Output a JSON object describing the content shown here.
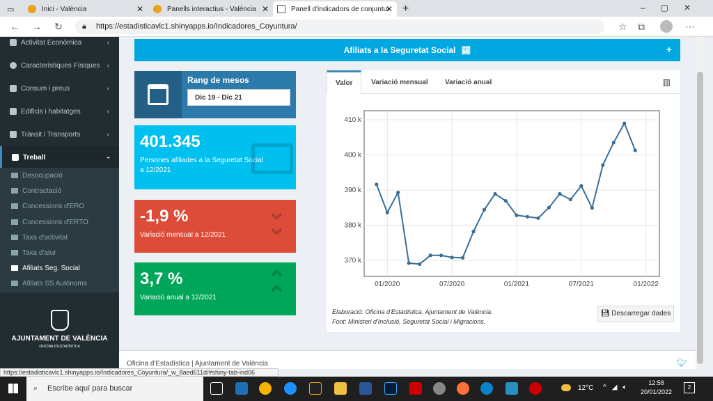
{
  "browser": {
    "tabs": [
      {
        "label": "Inici - València"
      },
      {
        "label": "Panells interactius - València"
      },
      {
        "label": "Panell d'indicadors de conjuntura"
      }
    ],
    "url": "https://estadisticavlc1.shinyapps.io/Indicadores_Coyuntura/",
    "status_url": "https://estadisticavlc1.shinyapps.io/Indicadores_Coyuntura/_w_8aed611d/#shiny-tab-ind06"
  },
  "sidebar": {
    "items": [
      {
        "label": "Activitat Econòmica"
      },
      {
        "label": "Característiques Físiques"
      },
      {
        "label": "Consum i preus"
      },
      {
        "label": "Edificis i habitatges"
      },
      {
        "label": "Trànsit i Transports"
      },
      {
        "label": "Treball"
      }
    ],
    "subitems": [
      {
        "label": "Desocupació"
      },
      {
        "label": "Contractació"
      },
      {
        "label": "Concessions d'ERO"
      },
      {
        "label": "Concessions d'ERTO"
      },
      {
        "label": "Taxa d'activitat"
      },
      {
        "label": "Taxa d'atur"
      },
      {
        "label": "Afiliats Seg. Social"
      },
      {
        "label": "Afiliats SS Autònoms"
      }
    ],
    "logo_title": "AJUNTAMENT DE VALÈNCIA",
    "logo_subtitle": "OFICINA D'ESTADÍSTICA"
  },
  "main": {
    "banner_title": "Afiliats a la Seguretat Social",
    "banner_plus": "+",
    "range": {
      "title": "Rang de mesos",
      "value": "Dic 19 - Dic 21"
    },
    "kpis": [
      {
        "value": "401.345",
        "label": "Persones afiliades a la Seguretat Social a 12/2021",
        "color": "#00c0ef"
      },
      {
        "value": "-1,9 %",
        "label": "Variació mensual a 12/2021",
        "color": "#dd4b39"
      },
      {
        "value": "3,7 %",
        "label": "Variació anual a 12/2021",
        "color": "#00a65a"
      }
    ],
    "chart_tabs": [
      {
        "label": "Valor"
      },
      {
        "label": "Variació mensual"
      },
      {
        "label": "Variació anual"
      }
    ],
    "credit_line1": "Elaboració: Oficina d'Estadística. Ajuntament de València.",
    "credit_line2": "Font: Ministeri d'Inclusió, Seguretat Social i Migracions.",
    "download_label": "Descarregar dades",
    "footer": "Oficina d'Estadística | Ajuntament de València"
  },
  "chart_data": {
    "type": "line",
    "x": [
      "2019-12",
      "2020-01",
      "2020-02",
      "2020-03",
      "2020-04",
      "2020-05",
      "2020-06",
      "2020-07",
      "2020-08",
      "2020-09",
      "2020-10",
      "2020-11",
      "2020-12",
      "2021-01",
      "2021-02",
      "2021-03",
      "2021-04",
      "2021-05",
      "2021-06",
      "2021-07",
      "2021-08",
      "2021-09",
      "2021-10",
      "2021-11",
      "2021-12"
    ],
    "series": [
      {
        "values": [
          391.6,
          383.6,
          389.3,
          369.2,
          368.9,
          371.4,
          371.4,
          370.8,
          370.7,
          378.2,
          384.4,
          388.9,
          386.9,
          382.8,
          382.4,
          382.0,
          385.0,
          388.9,
          387.3,
          391.2,
          384.9,
          397.1,
          403.5,
          409.0,
          401.3
        ]
      }
    ],
    "x_ticks": [
      "01/2020",
      "07/2020",
      "01/2021",
      "07/2021",
      "01/2022"
    ],
    "y_ticks": [
      "370 k",
      "380 k",
      "390 k",
      "400 k",
      "410 k"
    ],
    "ylim": [
      367,
      411
    ],
    "grid": true,
    "line_color": "#3a6e96"
  },
  "taskbar": {
    "search_placeholder": "Escribe aquí para buscar",
    "weather": "12°C",
    "time": "12:58",
    "date": "20/01/2022",
    "notifications": "2"
  }
}
